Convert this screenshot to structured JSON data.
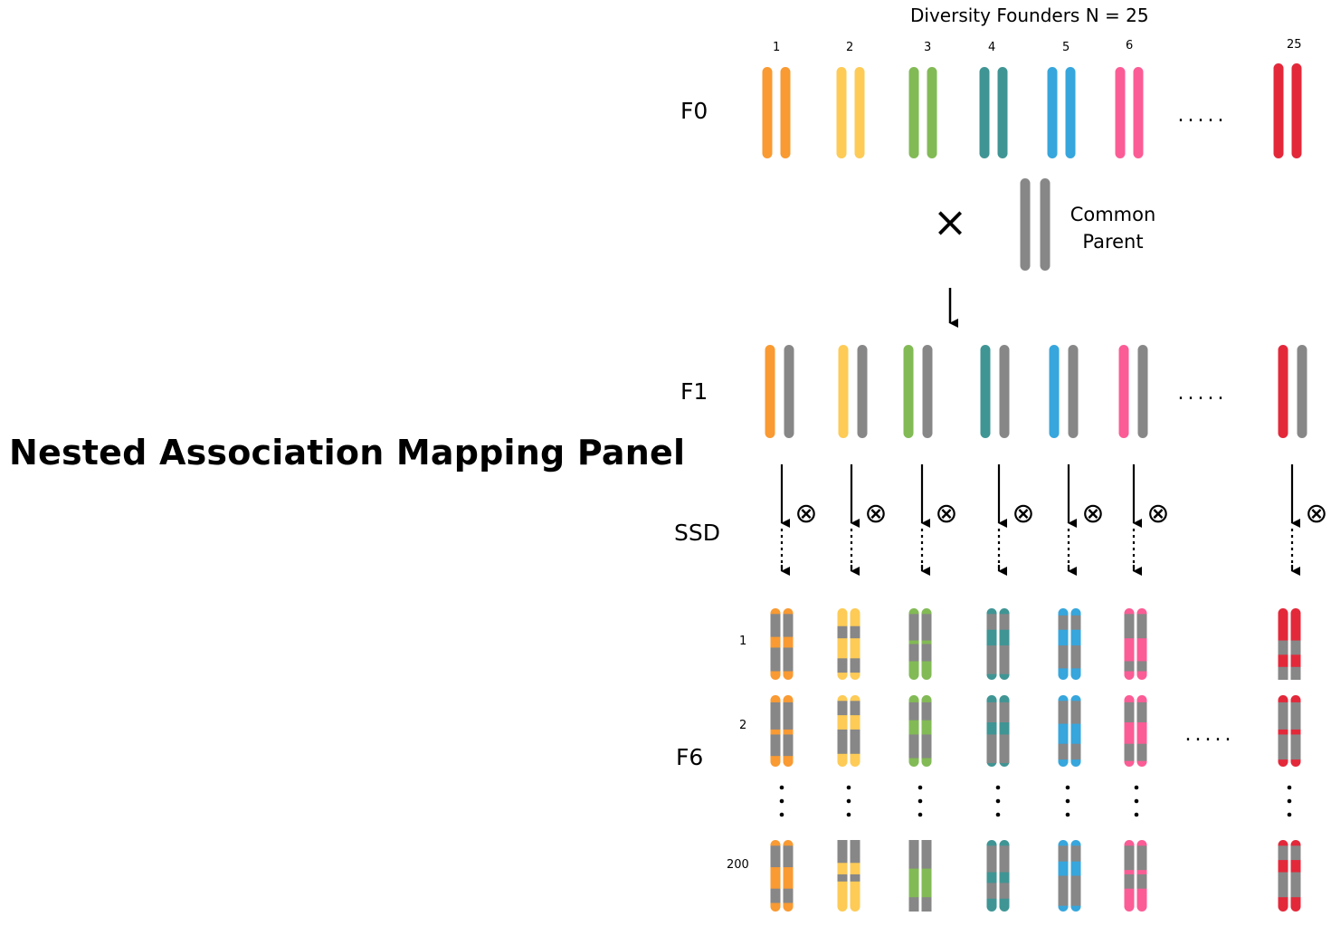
{
  "title": "Nested Association Mapping Panel",
  "header": "Diversity Founders N = 25",
  "generations": {
    "f0": "F0",
    "f1": "F1",
    "ssd": "SSD",
    "f6": "F6"
  },
  "common_parent": {
    "line1": "Common",
    "line2": "Parent"
  },
  "founder_labels": [
    "1",
    "2",
    "3",
    "4",
    "5",
    "6",
    "25"
  ],
  "row_labels": [
    "1",
    "2",
    "200"
  ],
  "symbols": {
    "cross": "×",
    "self": "⊗",
    "ellipsis": "....."
  },
  "colors": {
    "founders": [
      "#F99A32",
      "#FDCB56",
      "#82BA55",
      "#3F9594",
      "#36A6DD",
      "#FB5C95",
      "#E3283A"
    ],
    "common_parent": "#878787"
  }
}
